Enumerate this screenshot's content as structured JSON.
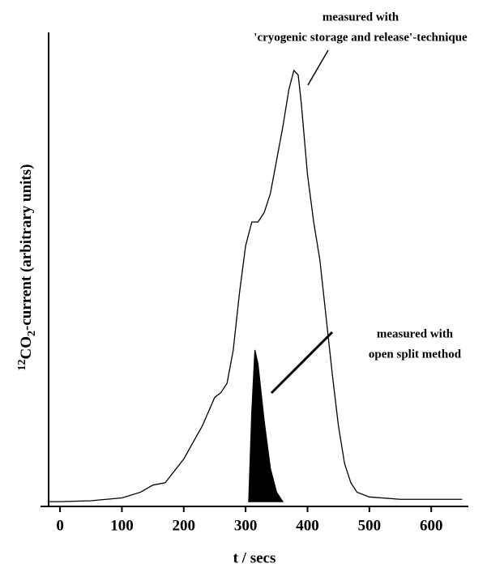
{
  "chart_data": {
    "type": "line",
    "xlabel": "t / secs",
    "ylabel": {
      "mass": "12",
      "formula": "CO",
      "sub": "2",
      "rest": "-current (arbitrary units)"
    },
    "xlim": [
      -25,
      660
    ],
    "ylim": [
      0,
      100
    ],
    "xticks": [
      0,
      100,
      200,
      300,
      400,
      500,
      600
    ],
    "series": [
      {
        "color": "#000000",
        "fill": false,
        "x": [
          -20,
          0,
          50,
          100,
          130,
          150,
          170,
          200,
          230,
          250,
          260,
          270,
          280,
          290,
          300,
          310,
          320,
          330,
          340,
          350,
          360,
          370,
          378,
          385,
          390,
          400,
          410,
          420,
          430,
          440,
          450,
          460,
          470,
          480,
          500,
          550,
          650
        ],
        "values": [
          1,
          1,
          1.2,
          1.8,
          3,
          4.5,
          5,
          10,
          17,
          23,
          24,
          26,
          33,
          45,
          55,
          60,
          60,
          62,
          66,
          73,
          80,
          88,
          92,
          91,
          85,
          70,
          60,
          52,
          40,
          28,
          17,
          9,
          5,
          3,
          2,
          1.5,
          1.5
        ]
      },
      {
        "color": "#000000",
        "fill": true,
        "x": [
          305,
          310,
          315,
          320,
          330,
          340,
          350,
          360
        ],
        "values": [
          1,
          20,
          33,
          30,
          18,
          8,
          3,
          1
        ]
      }
    ],
    "annotations": [
      {
        "lines": [
          "measured with",
          "'cryogenic storage and release'-technique"
        ]
      },
      {
        "lines": [
          "measured with",
          "open split method"
        ]
      }
    ]
  }
}
